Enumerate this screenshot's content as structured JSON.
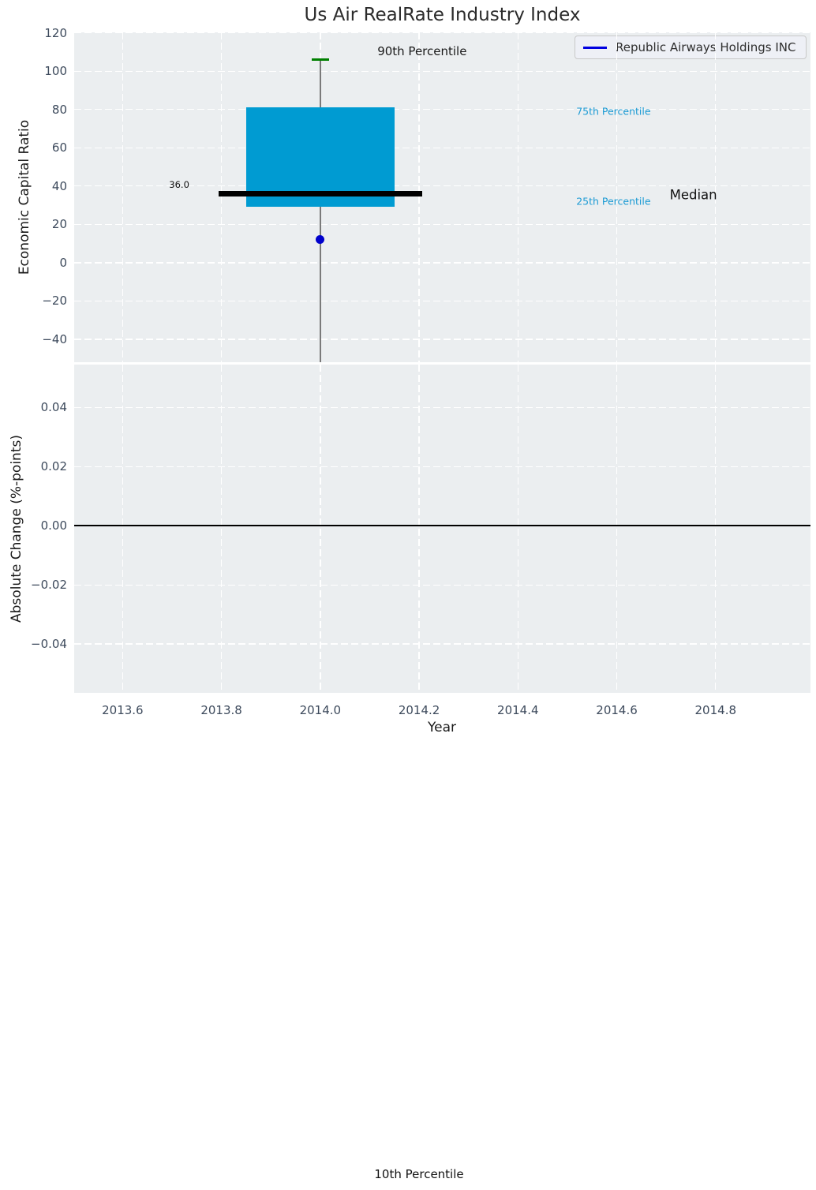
{
  "figure": {
    "title": "Us Air RealRate Industry Index"
  },
  "colors": {
    "plot_background": "#ebeef0",
    "grid": "#ffffff",
    "box_fill": "#009bd2",
    "median_line": "#000000",
    "whisker_line": "#7a7a7a",
    "p90_cap": "#008000",
    "company_point": "#0000cc",
    "legend_line": "#0000e0",
    "percentile_label": "#1c9bd4",
    "tick_label": "#3d4a5c",
    "zero_line": "#000000"
  },
  "chart_data": [
    {
      "type": "box",
      "title": "Us Air RealRate Industry Index",
      "ylabel": "Economic Capital Ratio",
      "ylim": [
        -52,
        120.3
      ],
      "xlim": [
        2013.502,
        2014.992
      ],
      "grid": true,
      "yticks": [
        {
          "v": -40,
          "t": "−40"
        },
        {
          "v": -20,
          "t": "−20"
        },
        {
          "v": 0,
          "t": "0"
        },
        {
          "v": 20,
          "t": "20"
        },
        {
          "v": 40,
          "t": "40"
        },
        {
          "v": 60,
          "t": "60"
        },
        {
          "v": 80,
          "t": "80"
        },
        {
          "v": 100,
          "t": "100"
        },
        {
          "v": 120,
          "t": "120"
        }
      ],
      "xticks": [
        {
          "v": 2013.6,
          "t": "2013.6"
        },
        {
          "v": 2013.8,
          "t": "2013.8"
        },
        {
          "v": 2014.0,
          "t": "2014.0"
        },
        {
          "v": 2014.2,
          "t": "2014.2"
        },
        {
          "v": 2014.4,
          "t": "2014.4"
        },
        {
          "v": 2014.6,
          "t": "2014.6"
        },
        {
          "v": 2014.8,
          "t": "2014.8"
        }
      ],
      "show_xtick_labels": false,
      "box": {
        "x": 2014.0,
        "q1": 29,
        "median": 36,
        "q3": 81,
        "p90": 106,
        "whisker_low_clipped_at_axis": true,
        "box_halfwidth": 0.15,
        "median_line_halfwidth": 0.206,
        "cap_halfwidth": 0.0176,
        "median_label": "36.0"
      },
      "company_point": {
        "x": 2014.0,
        "y": 12
      },
      "legend": {
        "label": "Republic Airways Holdings INC",
        "position": "upper right"
      },
      "annotations": [
        {
          "text": "90th Percentile",
          "x": 2014.206,
          "y": 110.4,
          "align": "center",
          "size": 15,
          "color": "#1a1a1a"
        },
        {
          "text": "75th Percentile",
          "x": 2014.518,
          "y": 79.0,
          "align": "left",
          "size": 12.5,
          "color": "#1c9bd4"
        },
        {
          "text": "25th Percentile",
          "x": 2014.518,
          "y": 32.0,
          "align": "left",
          "size": 12.5,
          "color": "#1c9bd4"
        },
        {
          "text": "Median",
          "x": 2014.755,
          "y": 35.4,
          "align": "center",
          "size": 16.5,
          "color": "#111111"
        },
        {
          "text": "36.0",
          "x": 2013.735,
          "y": 40.6,
          "align": "right",
          "size": 11.5,
          "color": "#111111"
        }
      ],
      "p10_annotation": {
        "text": "10th Percentile",
        "position": "far below axis (figure bottom)"
      }
    },
    {
      "type": "line",
      "ylabel": "Absolute Change (%-points)",
      "xlabel": "Year",
      "ylim": [
        -0.0565,
        0.0545
      ],
      "xlim": [
        2013.502,
        2014.992
      ],
      "grid": true,
      "zero_line": 0.0,
      "series": [],
      "yticks": [
        {
          "v": -0.04,
          "t": "−0.04"
        },
        {
          "v": -0.02,
          "t": "−0.02"
        },
        {
          "v": 0,
          "t": "0.00"
        },
        {
          "v": 0.02,
          "t": "0.02"
        },
        {
          "v": 0.04,
          "t": "0.04"
        }
      ],
      "xticks": [
        {
          "v": 2013.6,
          "t": "2013.6"
        },
        {
          "v": 2013.8,
          "t": "2013.8"
        },
        {
          "v": 2014.0,
          "t": "2014.0"
        },
        {
          "v": 2014.2,
          "t": "2014.2"
        },
        {
          "v": 2014.4,
          "t": "2014.4"
        },
        {
          "v": 2014.6,
          "t": "2014.6"
        },
        {
          "v": 2014.8,
          "t": "2014.8"
        }
      ],
      "show_xtick_labels": true
    }
  ]
}
